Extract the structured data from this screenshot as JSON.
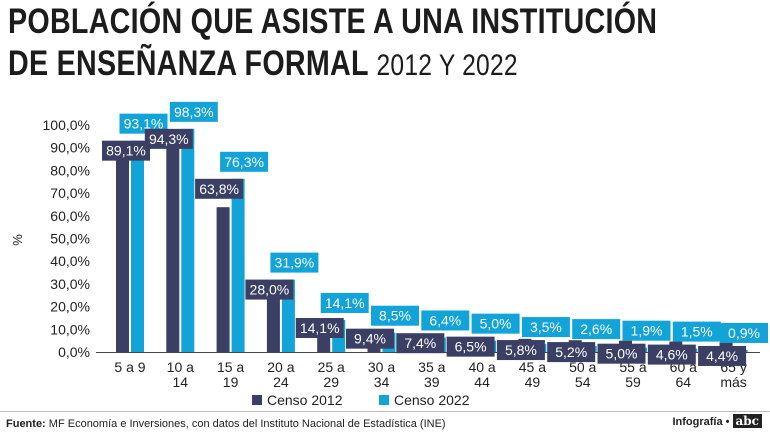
{
  "title": {
    "line1": "POBLACIÓN QUE ASISTE A UNA INSTITUCIÓN",
    "line2_main": "DE ENSEÑANZA FORMAL",
    "line2_sub": "2012 Y 2022"
  },
  "footer": {
    "source_label": "Fuente:",
    "source_text": "MF Economía e Inversiones, con datos del Instituto Nacional de Estadística (INE)",
    "credit": "Infografía •",
    "logo": "abc"
  },
  "colors": {
    "censo2012": "#3a3f63",
    "censo2022": "#12a3d9",
    "axis_text": "#222222",
    "label_text": "#ffffff"
  },
  "chart_data": {
    "type": "bar",
    "ylabel": "%",
    "ylim": [
      0,
      100
    ],
    "yticks": [
      "0,0%",
      "10,0%",
      "20,0%",
      "30,0%",
      "40,0%",
      "50,0%",
      "60,0%",
      "70,0%",
      "80,0%",
      "90,0%",
      "100,0%"
    ],
    "categories": [
      [
        "5 a 9"
      ],
      [
        "10 a",
        "14"
      ],
      [
        "15 a",
        "19"
      ],
      [
        "20 a",
        "24"
      ],
      [
        "25 a",
        "29"
      ],
      [
        "30 a",
        "34"
      ],
      [
        "35 a",
        "39"
      ],
      [
        "40 a",
        "44"
      ],
      [
        "45 a",
        "49"
      ],
      [
        "50 a",
        "54"
      ],
      [
        "55 a",
        "59"
      ],
      [
        "60 a",
        "64"
      ],
      [
        "65 y",
        "más"
      ]
    ],
    "series": [
      {
        "name": "Censo 2012",
        "values": [
          89.1,
          94.3,
          63.8,
          28.0,
          14.1,
          9.4,
          7.4,
          6.5,
          5.8,
          5.2,
          5.0,
          4.6,
          4.4
        ],
        "labels": [
          "89,1%",
          "94,3%",
          "63,8%",
          "28,0%",
          "14,1%",
          "9,4%",
          "7,4%",
          "6,5%",
          "5,8%",
          "5,2%",
          "5,0%",
          "4,6%",
          "4,4%"
        ]
      },
      {
        "name": "Censo 2022",
        "values": [
          93.1,
          98.3,
          76.3,
          31.9,
          14.1,
          8.5,
          6.4,
          5.0,
          3.5,
          2.6,
          1.9,
          1.5,
          0.9
        ],
        "labels": [
          "93,1%",
          "98,3%",
          "76,3%",
          "31,9%",
          "14,1%",
          "8,5%",
          "6,4%",
          "5,0%",
          "3,5%",
          "2,6%",
          "1,9%",
          "1,5%",
          "0,9%"
        ]
      }
    ],
    "legend_position": "bottom-center",
    "grid": false
  }
}
